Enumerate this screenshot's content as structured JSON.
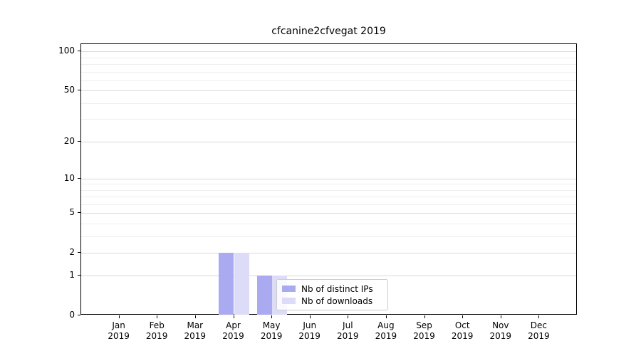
{
  "chart_data": {
    "type": "bar",
    "title": "cfcanine2cfvegat 2019",
    "categories": [
      "Jan 2019",
      "Feb 2019",
      "Mar 2019",
      "Apr 2019",
      "May 2019",
      "Jun 2019",
      "Jul 2019",
      "Aug 2019",
      "Sep 2019",
      "Oct 2019",
      "Nov 2019",
      "Dec 2019"
    ],
    "series": [
      {
        "name": "Nb of distinct IPs",
        "color": "#aaaaf0",
        "values": [
          0,
          0,
          0,
          2,
          1,
          0,
          0,
          0,
          0,
          0,
          0,
          0
        ]
      },
      {
        "name": "Nb of downloads",
        "color": "#dcdcf8",
        "values": [
          0,
          0,
          0,
          2,
          1,
          0,
          0,
          0,
          0,
          0,
          0,
          0
        ]
      }
    ],
    "yscale": "symlog",
    "ylim": [
      0,
      114
    ],
    "y_major_ticks": [
      0,
      1,
      2,
      5,
      10,
      20,
      50,
      100
    ],
    "y_minor_ticks": [
      3,
      4,
      6,
      7,
      8,
      9,
      30,
      40,
      60,
      70,
      80,
      90
    ],
    "xlabel": "",
    "ylabel": "",
    "grid": "horizontal major and minor gridlines",
    "legend_position": "inside lower-center"
  },
  "colors": {
    "background": "#ffffff",
    "bar_distinct_ips": "#aaaaf0",
    "bar_downloads": "#dcdcf8",
    "major_grid": "#d9d9d9",
    "minor_grid": "#efefef",
    "spine": "#000000",
    "text": "#000000",
    "legend_border": "#cccccc"
  }
}
